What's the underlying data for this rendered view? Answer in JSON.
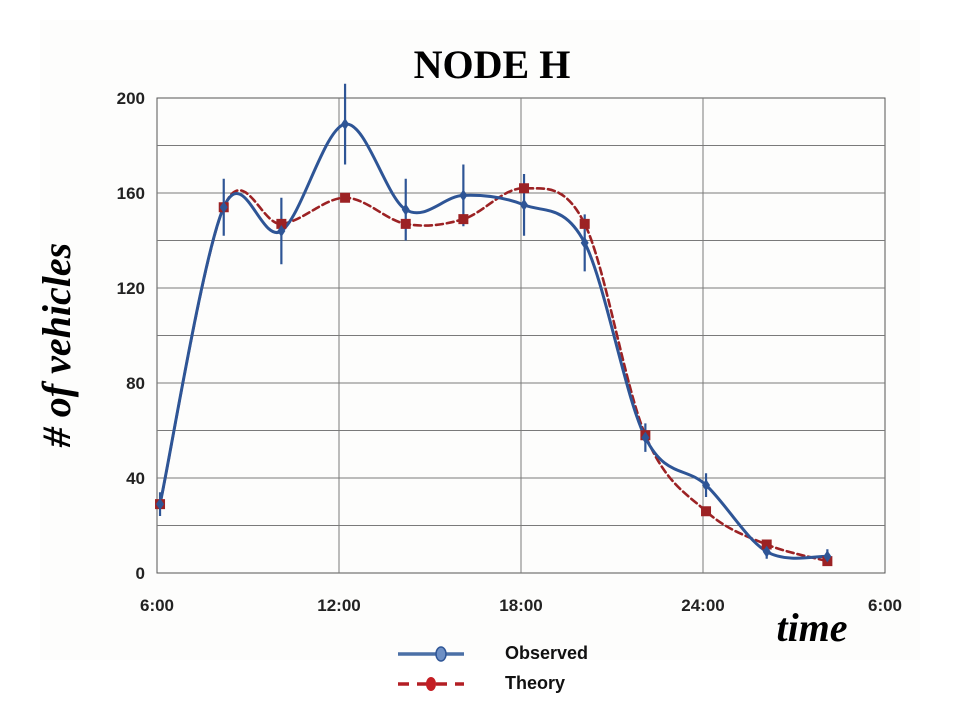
{
  "chart_data": {
    "type": "line",
    "title": "NODE H",
    "xlabel": "time",
    "ylabel": "# of vehicles",
    "xlim": [
      6,
      30
    ],
    "ylim": [
      0,
      200
    ],
    "x_ticks": [
      6,
      12,
      18,
      24,
      30
    ],
    "x_tick_labels": [
      "6:00",
      "12:00",
      "18:00",
      "24:00",
      "6:00"
    ],
    "y_ticks": [
      0,
      40,
      80,
      120,
      160,
      200
    ],
    "y_tick_labels": [
      "0",
      "40",
      "80",
      "120",
      "160",
      "200"
    ],
    "grid": true,
    "legend": "bottom-center",
    "series": [
      {
        "name": "Observed",
        "color": "#2e5596",
        "style": "solid",
        "marker": "diamond",
        "x": [
          6.1,
          8.2,
          10.1,
          12.2,
          14.2,
          16.1,
          18.1,
          20.1,
          22.1,
          24.1,
          26.1,
          28.1
        ],
        "y": [
          29,
          154,
          144,
          189,
          153,
          159,
          155,
          139,
          57,
          37,
          9,
          7
        ],
        "error": [
          5,
          12,
          14,
          17,
          13,
          13,
          13,
          12,
          6,
          5,
          3,
          3
        ]
      },
      {
        "name": "Theory",
        "color": "#9c2224",
        "style": "dashed",
        "marker": "square",
        "x": [
          6.1,
          8.2,
          10.1,
          12.2,
          14.2,
          16.1,
          18.1,
          20.1,
          22.1,
          24.1,
          26.1,
          28.1
        ],
        "y": [
          29,
          154,
          147,
          158,
          147,
          149,
          162,
          147,
          58,
          26,
          12,
          5
        ]
      }
    ]
  }
}
